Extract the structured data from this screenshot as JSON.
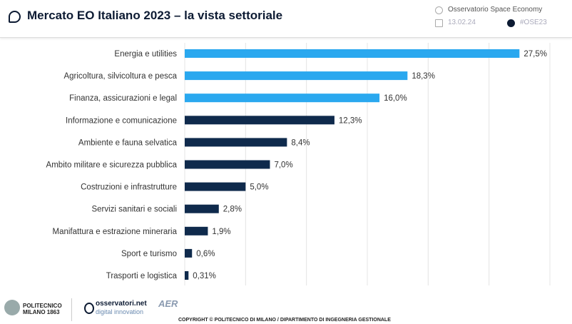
{
  "header": {
    "title": "Mercato EO Italiano 2023 – la vista settoriale",
    "observatory": "Osservatorio Space Economy",
    "date": "13.02.24",
    "hashtag": "#OSE23"
  },
  "footer": {
    "copyright": "COPYRIGHT © POLITECNICO DI MILANO / DIPARTIMENTO DI INGEGNERIA GESTIONALE",
    "logo1": "POLITECNICO MILANO 1863",
    "logo2a": "osservatori.net",
    "logo2b": "digital innovation",
    "logo3": "AER"
  },
  "chart_data": {
    "type": "bar",
    "orientation": "horizontal",
    "categories": [
      "Energia e utilities",
      "Agricoltura, silvicoltura e pesca",
      "Finanza, assicurazioni e legal",
      "Informazione e comunicazione",
      "Ambiente e fauna selvatica",
      "Ambito militare e sicurezza pubblica",
      "Costruzioni e infrastrutture",
      "Servizi sanitari e sociali",
      "Manifattura e estrazione mineraria",
      "Sport e turismo",
      "Trasporti e logistica"
    ],
    "values": [
      27.5,
      18.3,
      16.0,
      12.3,
      8.4,
      7.0,
      5.0,
      2.8,
      1.9,
      0.6,
      0.31
    ],
    "labels": [
      "27,5%",
      "18,3%",
      "16,0%",
      "12,3%",
      "8,4%",
      "7,0%",
      "5,0%",
      "2,8%",
      "1,9%",
      "0,6%",
      "0,31%"
    ],
    "highlight_count": 3,
    "colors": {
      "highlight": "#2aa8ef",
      "default": "#0f2a4c"
    },
    "xlim": [
      0,
      30
    ],
    "grid": true
  }
}
